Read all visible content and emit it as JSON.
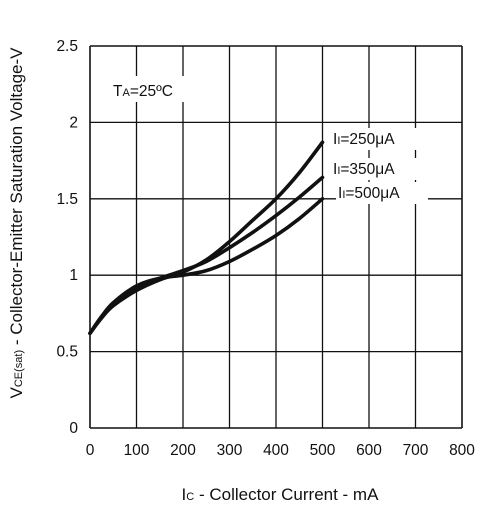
{
  "chart_data": {
    "type": "line",
    "title": "",
    "xlabel": "Ic - Collector Current - mA",
    "ylabel": "VCE(sat) - Collector-Emitter Saturation Voltage-V",
    "xlabel_main": "I",
    "xlabel_sub": "C",
    "xlabel_rest": " - Collector Current - mA",
    "ylabel_main": "V",
    "ylabel_sub": "CE(sat)",
    "ylabel_rest": " - Collector-Emitter Saturation Voltage-V",
    "xlim": [
      0,
      800
    ],
    "ylim": [
      0,
      2.5
    ],
    "x_ticks": [
      0,
      100,
      200,
      300,
      400,
      500,
      600,
      700,
      800
    ],
    "x_tick_labels": [
      "0",
      "100",
      "200",
      "300",
      "400",
      "500",
      "600",
      "700",
      "800"
    ],
    "y_ticks": [
      0,
      0.5,
      1,
      1.5,
      2,
      2.5
    ],
    "y_tick_labels": [
      "0",
      "0.5",
      "1",
      "1.5",
      "2",
      "2.5"
    ],
    "grid": true,
    "annotation": {
      "main": "T",
      "sub": "A",
      "rest": "=25ºC"
    },
    "series": [
      {
        "name": "II=250μA",
        "label_main": "I",
        "label_sub": "I",
        "label_rest": "=250μA",
        "x": [
          0,
          25,
          50,
          100,
          150,
          200,
          250,
          300,
          350,
          400,
          450,
          500
        ],
        "y": [
          0.62,
          0.72,
          0.8,
          0.9,
          0.97,
          1.02,
          1.1,
          1.22,
          1.36,
          1.5,
          1.67,
          1.87
        ]
      },
      {
        "name": "II=350μA",
        "label_main": "I",
        "label_sub": "I",
        "label_rest": "=350μA",
        "x": [
          0,
          25,
          50,
          100,
          150,
          200,
          250,
          300,
          350,
          400,
          450,
          500
        ],
        "y": [
          0.62,
          0.73,
          0.81,
          0.92,
          0.98,
          1.03,
          1.09,
          1.18,
          1.28,
          1.39,
          1.51,
          1.64
        ]
      },
      {
        "name": "II=500μA",
        "label_main": "I",
        "label_sub": "I",
        "label_rest": "=500μA",
        "x": [
          0,
          25,
          50,
          100,
          150,
          200,
          250,
          300,
          350,
          400,
          450,
          500
        ],
        "y": [
          0.62,
          0.73,
          0.82,
          0.93,
          0.98,
          1.0,
          1.03,
          1.09,
          1.17,
          1.26,
          1.37,
          1.5
        ]
      }
    ],
    "line_color": "#111111"
  }
}
